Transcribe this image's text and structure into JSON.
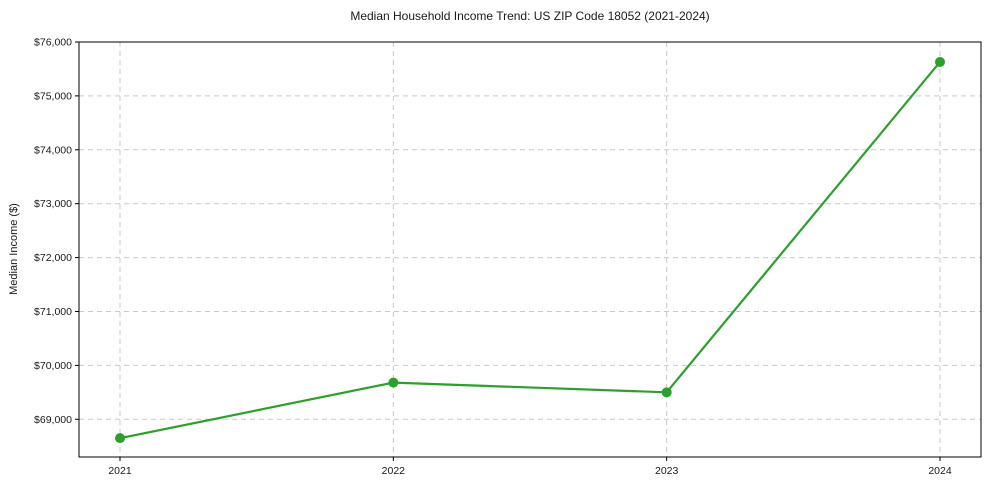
{
  "chart_data": {
    "type": "line",
    "title": "Median Household Income Trend: US ZIP Code 18052 (2021-2024)",
    "xlabel": "",
    "ylabel": "Median Income ($)",
    "categories": [
      "2021",
      "2022",
      "2023",
      "2024"
    ],
    "values": [
      68650,
      69680,
      69500,
      75630
    ],
    "ylim": [
      68300,
      76000
    ],
    "yticks": [
      69000,
      70000,
      71000,
      72000,
      73000,
      74000,
      75000,
      76000
    ],
    "ytick_label_format": "$#,###",
    "grid": true,
    "legend": "none",
    "line_color": "#2ca02c",
    "marker": "circle",
    "marker_color": "#2ca02c",
    "grid_color": "#c9c9c9",
    "axis_color": "#000000",
    "text_color": "#1a1a1a",
    "background": "#ffffff"
  }
}
